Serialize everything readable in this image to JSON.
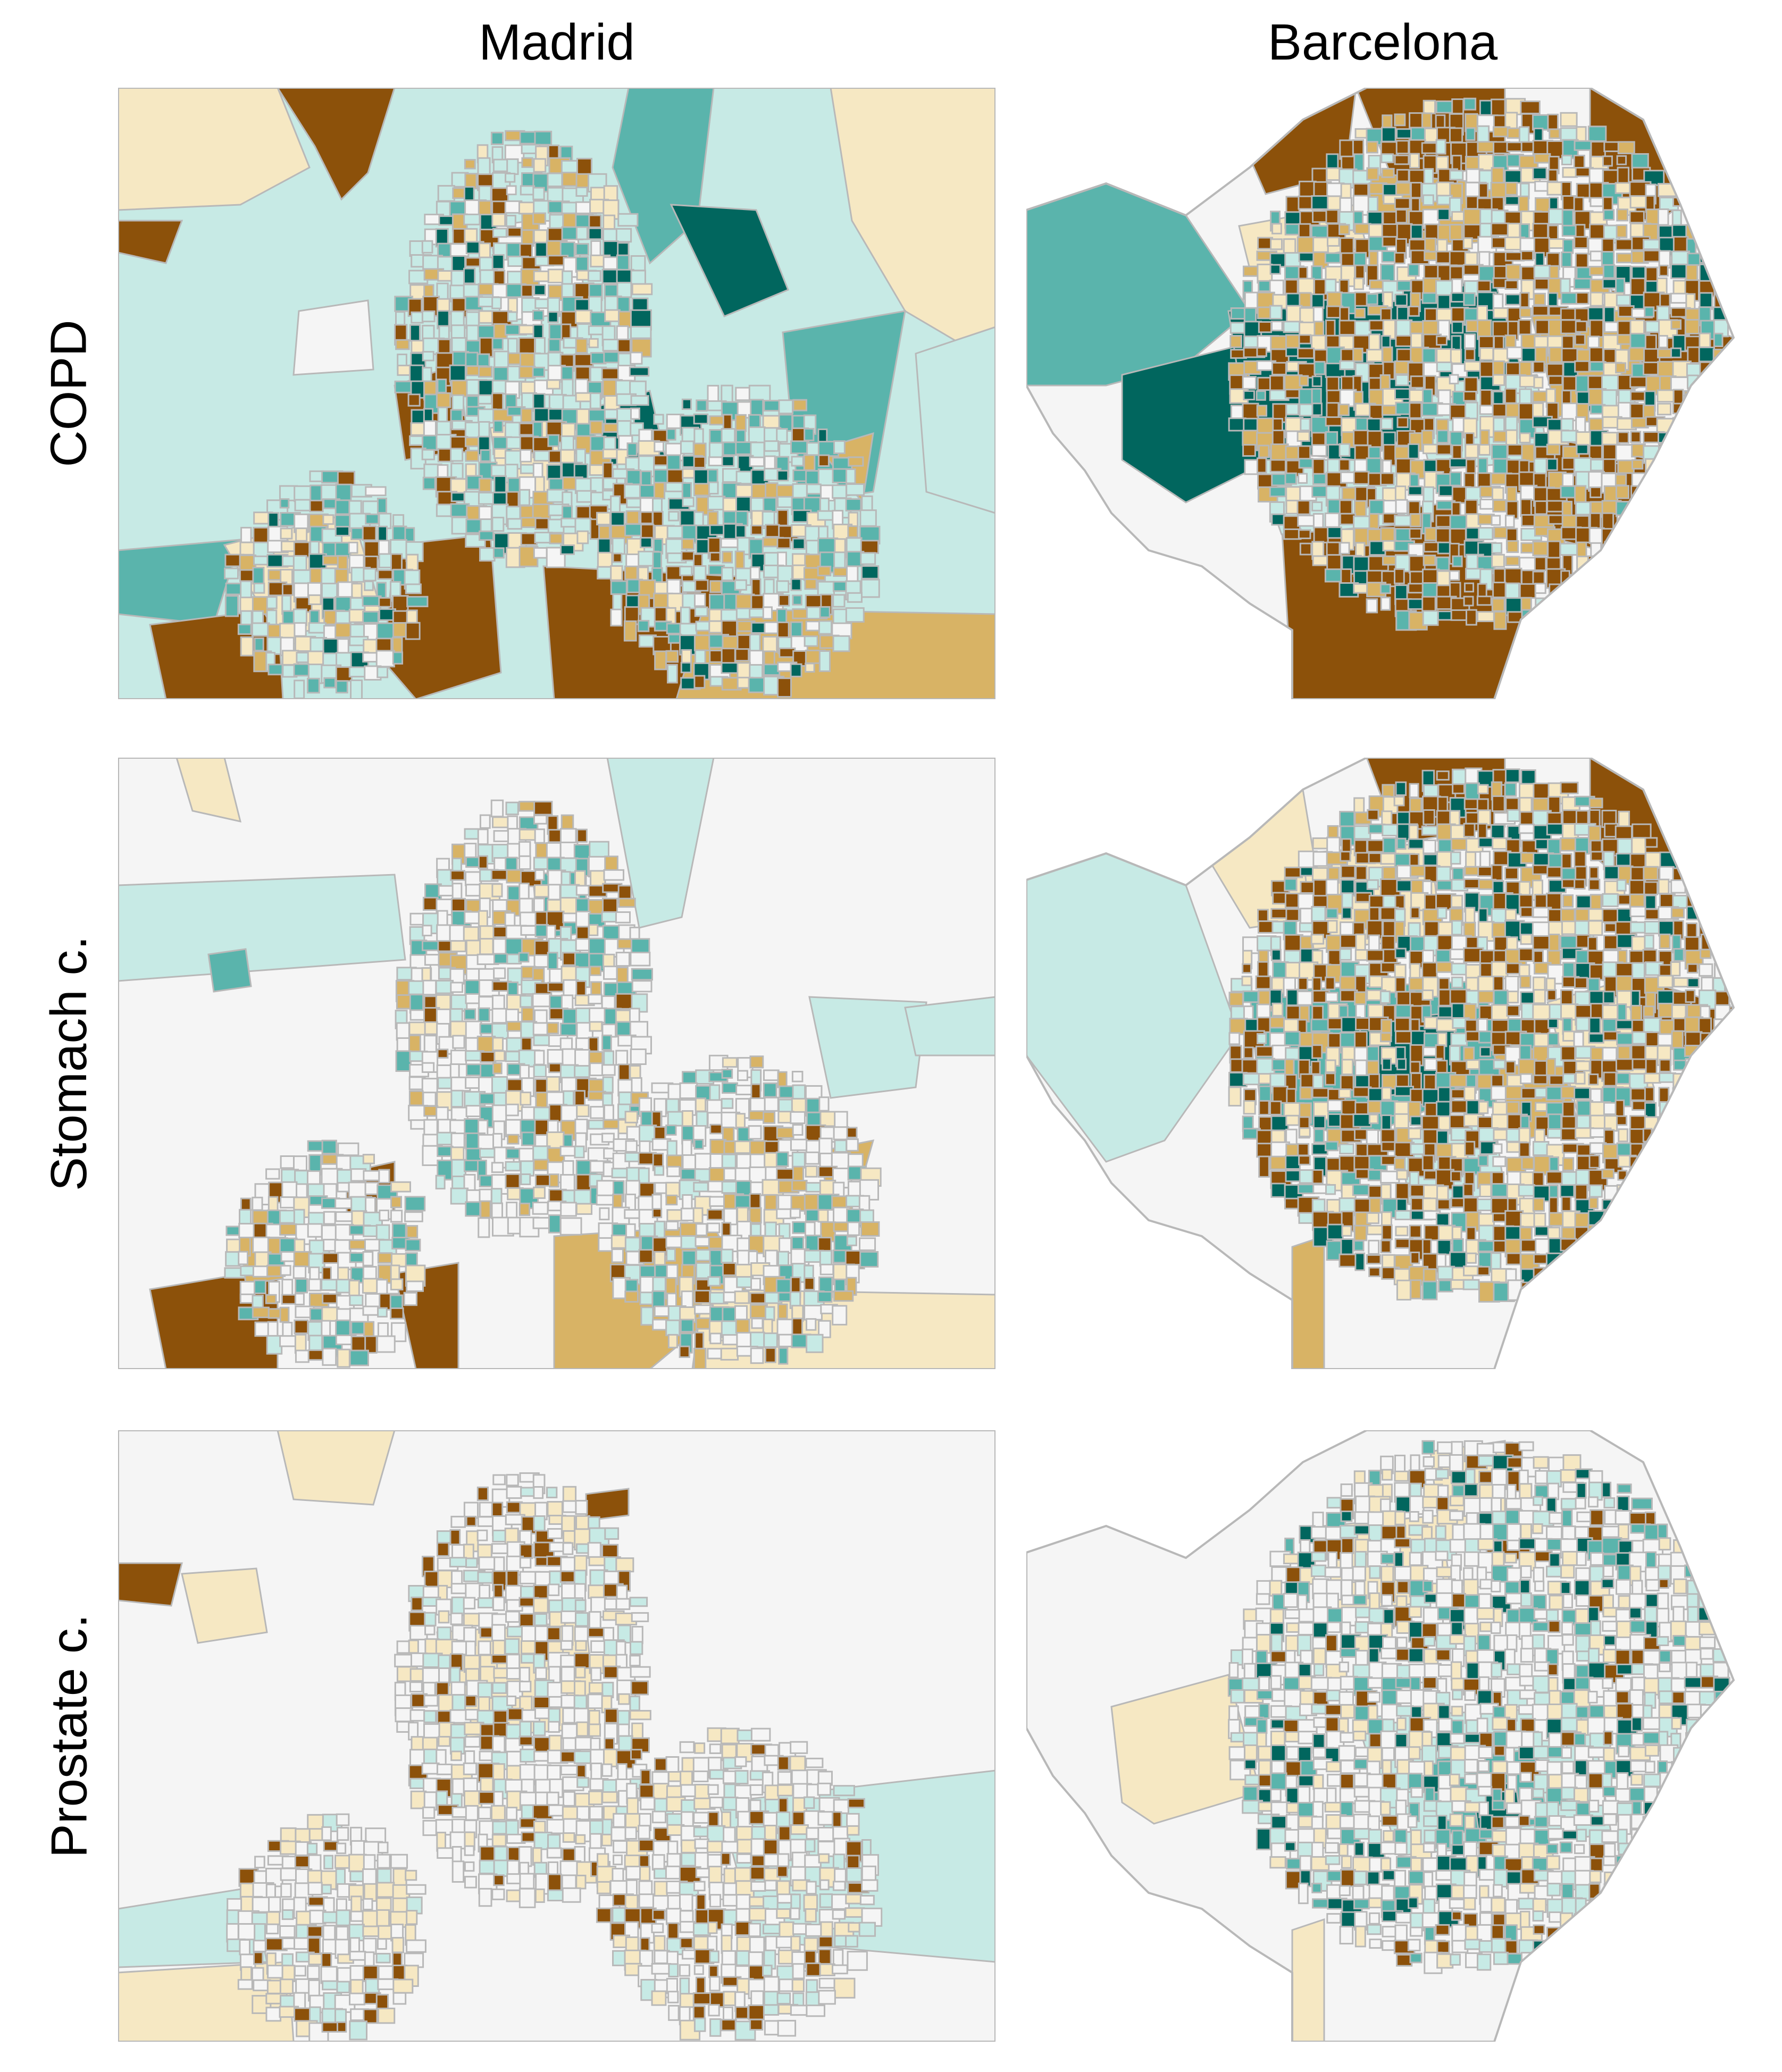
{
  "columns": [
    "Madrid",
    "Barcelona"
  ],
  "rows": [
    "COPD",
    "Stomach c.",
    "Prostate c."
  ],
  "palette": {
    "very_high": "#8c510a",
    "high": "#d8b365",
    "mod_high": "#f6e8c3",
    "neutral": "#f5f5f5",
    "mod_low": "#c7eae5",
    "low": "#5ab4ac",
    "very_low": "#01665e",
    "boundary": "#b8b8b8"
  },
  "maps": {
    "madrid_copd": {
      "dominant": [
        "mod_low",
        "low",
        "very_high",
        "high",
        "mod_high",
        "very_low",
        "neutral"
      ]
    },
    "barcelona_copd": {
      "dominant": [
        "very_high",
        "high",
        "mod_high",
        "low",
        "very_low",
        "mod_low",
        "neutral"
      ]
    },
    "madrid_stomach": {
      "dominant": [
        "neutral",
        "mod_low",
        "low",
        "high",
        "very_high",
        "mod_high"
      ]
    },
    "barcelona_stomach": {
      "dominant": [
        "very_high",
        "mod_high",
        "high",
        "mod_low",
        "low",
        "very_low",
        "neutral"
      ]
    },
    "madrid_prostate": {
      "dominant": [
        "neutral",
        "mod_high",
        "mod_low",
        "very_high"
      ]
    },
    "barcelona_prostate": {
      "dominant": [
        "neutral",
        "mod_high",
        "mod_low",
        "low",
        "very_low",
        "very_high"
      ]
    }
  }
}
